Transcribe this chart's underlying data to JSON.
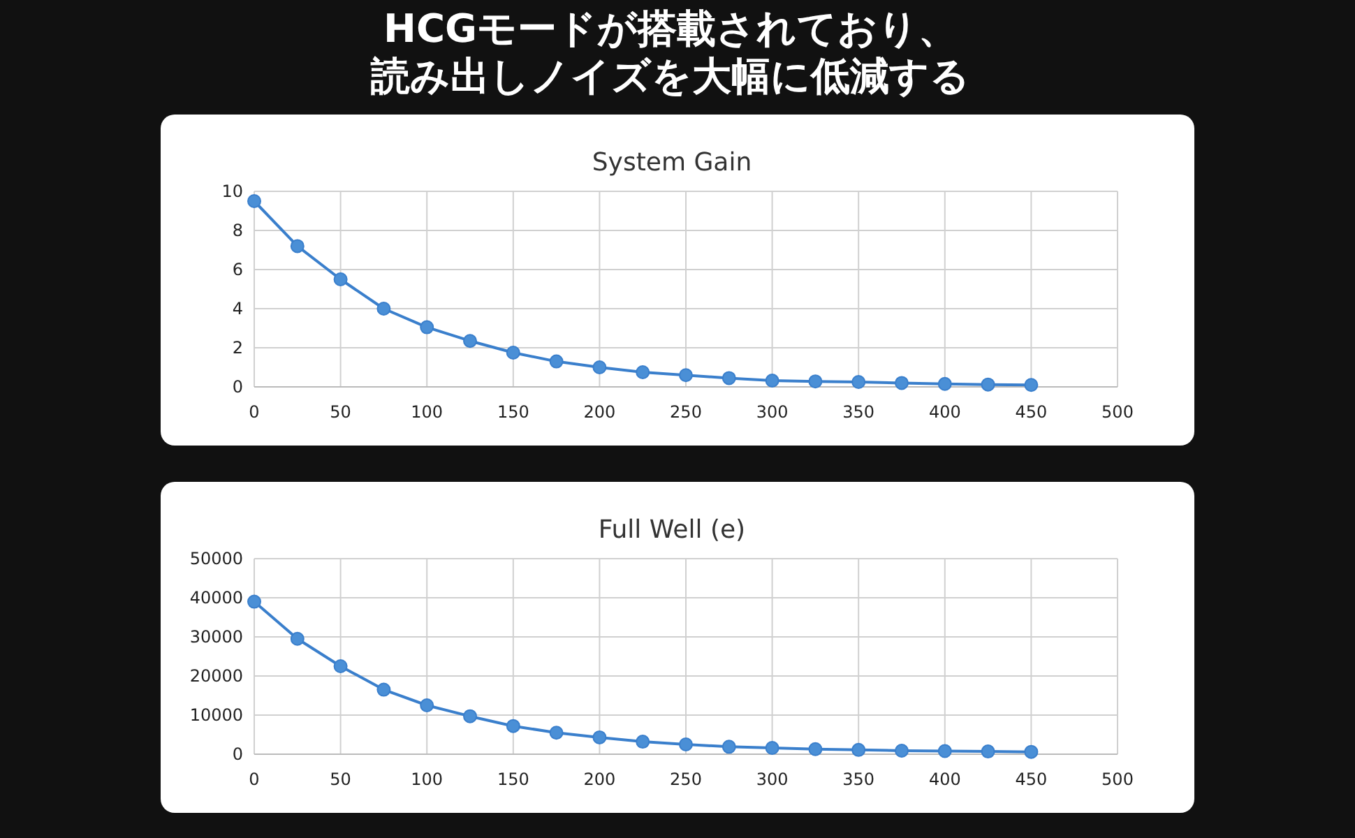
{
  "chart_data": [
    {
      "type": "line",
      "title": "System Gain",
      "annotations": [
        "HCGモードが搭載されており、",
        "読み出しノイズを大幅に低減する"
      ],
      "x": [
        0,
        25,
        50,
        75,
        100,
        125,
        150,
        175,
        200,
        225,
        250,
        275,
        300,
        325,
        350,
        375,
        400,
        425,
        450
      ],
      "series": [
        {
          "color": "#3a7fcc",
          "values": [
            9.5,
            7.2,
            5.5,
            4.0,
            3.05,
            2.35,
            1.75,
            1.3,
            1.0,
            0.75,
            0.6,
            0.45,
            0.32,
            0.28,
            0.25,
            0.2,
            0.15,
            0.12,
            0.1
          ]
        }
      ],
      "xlim": [
        0,
        500
      ],
      "xticks": [
        0,
        50,
        100,
        150,
        200,
        250,
        300,
        350,
        400,
        450,
        500
      ],
      "ylim": [
        0,
        10
      ],
      "yticks": [
        0,
        2,
        4,
        6,
        8,
        10
      ],
      "grid": true,
      "marker": "circle",
      "line_style": "solid"
    },
    {
      "type": "line",
      "title": "Full Well (e)",
      "x": [
        0,
        25,
        50,
        75,
        100,
        125,
        150,
        175,
        200,
        225,
        250,
        275,
        300,
        325,
        350,
        375,
        400,
        425,
        450
      ],
      "series": [
        {
          "color": "#3a7fcc",
          "values": [
            39000,
            29500,
            22500,
            16500,
            12500,
            9700,
            7200,
            5500,
            4300,
            3200,
            2500,
            1900,
            1600,
            1300,
            1100,
            900,
            800,
            700,
            600
          ]
        }
      ],
      "xlim": [
        0,
        500
      ],
      "xticks": [
        0,
        50,
        100,
        150,
        200,
        250,
        300,
        350,
        400,
        450,
        500
      ],
      "ylim": [
        0,
        50000
      ],
      "yticks": [
        0,
        10000,
        20000,
        30000,
        40000,
        50000
      ],
      "grid": true,
      "marker": "circle",
      "line_style": "solid"
    }
  ]
}
